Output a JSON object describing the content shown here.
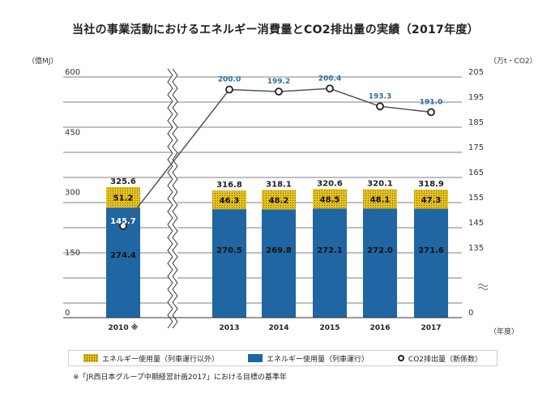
{
  "title": "当社の事業活動におけるエネルギー消費量とCO2排出量の実績（2017年度）",
  "left_unit": "（億MJ）",
  "right_unit": "（万t・CO2）",
  "x_unit": "（年度）",
  "note": "※「JR西日本グループ中期経営計画2017」における目標の基準年",
  "legend": {
    "other": "エネルギー使用量（列車運行以外）",
    "train": "エネルギー使用量（列車運行）",
    "co2": "CO2排出量（新係数）"
  },
  "chart_data": {
    "type": "bar",
    "stacked": true,
    "categories": [
      "2010 ※",
      "2013",
      "2014",
      "2015",
      "2016",
      "2017"
    ],
    "left_axis": {
      "ticks": [
        "600",
        "450",
        "300",
        "150",
        "0"
      ],
      "range": [
        0,
        600
      ]
    },
    "right_axis": {
      "ticks": [
        "205",
        "195",
        "185",
        "175",
        "165",
        "155",
        "145",
        "135",
        "0"
      ],
      "range": [
        130,
        210
      ],
      "break": true
    },
    "series": [
      {
        "name": "エネルギー使用量（列車運行）",
        "values": [
          274.4,
          270.5,
          269.8,
          272.1,
          272.0,
          271.6
        ],
        "labels": [
          "274.4",
          "270.5",
          "269.8",
          "272.1",
          "272.0",
          "271.6"
        ],
        "color": "#1f66a3"
      },
      {
        "name": "エネルギー使用量（列車運行以外）",
        "values": [
          51.2,
          46.3,
          48.2,
          48.5,
          48.1,
          47.3
        ],
        "labels": [
          "51.2",
          "46.3",
          "48.2",
          "48.5",
          "48.1",
          "47.3"
        ],
        "color": "#e9c31c"
      }
    ],
    "totals": [
      "325.6",
      "316.8",
      "318.1",
      "320.6",
      "320.1",
      "318.9"
    ],
    "co2": {
      "name": "CO2排出量（新係数）",
      "values": [
        145.7,
        200.0,
        199.2,
        200.4,
        193.3,
        191.0
      ],
      "labels": [
        "145.7",
        "200.0",
        "199.2",
        "200.4",
        "193.3",
        "191.0"
      ],
      "color": "#2e6da4"
    },
    "grid": true,
    "axis_break_between": [
      "2010 ※",
      "2013"
    ]
  }
}
